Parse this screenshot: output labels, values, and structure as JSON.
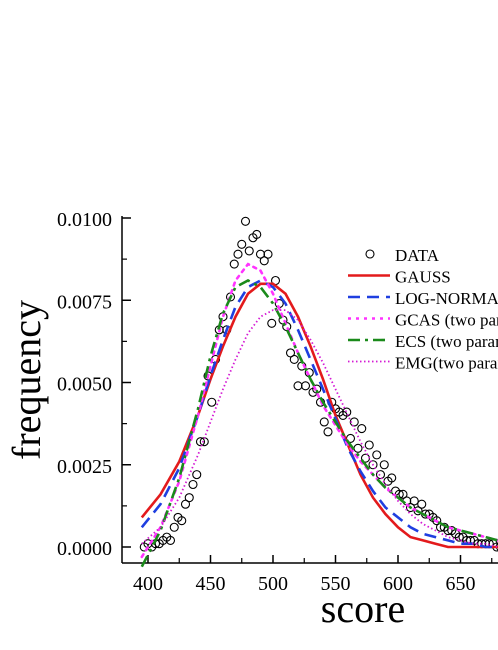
{
  "chart_data": {
    "type": "line",
    "title": "",
    "xlabel": "score",
    "ylabel": "frequency",
    "xlim": [
      380,
      690
    ],
    "ylim": [
      -0.0005,
      0.01
    ],
    "x_ticks": [
      400,
      450,
      500,
      550,
      600,
      650
    ],
    "x_tick_labels": [
      "400",
      "450",
      "500",
      "550",
      "600",
      "650"
    ],
    "y_ticks": [
      0.0,
      0.0025,
      0.005,
      0.0075,
      0.01
    ],
    "y_tick_labels": [
      "0.0000",
      "0.0025",
      "0.0050",
      "0.0075",
      "0.0100"
    ],
    "grid": false,
    "legend_position": "top-right",
    "series": [
      {
        "name": "DATA",
        "style": "markers",
        "marker": "open-circle",
        "color": "#000000",
        "x": [
          397,
          400,
          403,
          406,
          409,
          412,
          415,
          418,
          421,
          424,
          427,
          430,
          433,
          436,
          439,
          442,
          445,
          448,
          451,
          454,
          457,
          460,
          463,
          466,
          469,
          472,
          475,
          478,
          481,
          484,
          487,
          490,
          493,
          496,
          499,
          502,
          505,
          508,
          511,
          514,
          517,
          520,
          523,
          526,
          529,
          532,
          535,
          538,
          541,
          544,
          547,
          550,
          553,
          556,
          559,
          562,
          565,
          568,
          571,
          574,
          577,
          580,
          583,
          586,
          589,
          592,
          595,
          598,
          601,
          604,
          607,
          610,
          613,
          616,
          619,
          622,
          625,
          628,
          631,
          634,
          637,
          640,
          643,
          646,
          649,
          652,
          655,
          658,
          661,
          664,
          667,
          670,
          673,
          676,
          679,
          682,
          685
        ],
        "y": [
          0.0,
          0.0001,
          0.0,
          0.0001,
          0.0001,
          0.0002,
          0.0003,
          0.0002,
          0.0006,
          0.0009,
          0.0008,
          0.0013,
          0.0015,
          0.0019,
          0.0022,
          0.0032,
          0.0032,
          0.0052,
          0.0044,
          0.0057,
          0.0066,
          0.007,
          0.0066,
          0.0076,
          0.0086,
          0.0089,
          0.0092,
          0.0099,
          0.009,
          0.0094,
          0.0095,
          0.0089,
          0.0087,
          0.0089,
          0.0068,
          0.0081,
          0.0074,
          0.0069,
          0.0067,
          0.0059,
          0.0057,
          0.0049,
          0.0055,
          0.0049,
          0.0053,
          0.0047,
          0.0048,
          0.0044,
          0.0038,
          0.0035,
          0.0044,
          0.0042,
          0.0041,
          0.004,
          0.0041,
          0.0033,
          0.0038,
          0.003,
          0.0036,
          0.0027,
          0.0031,
          0.0025,
          0.0028,
          0.0022,
          0.0025,
          0.002,
          0.0021,
          0.0017,
          0.0016,
          0.0016,
          0.0014,
          0.0012,
          0.0014,
          0.0011,
          0.0013,
          0.001,
          0.001,
          0.0009,
          0.0008,
          0.0006,
          0.0006,
          0.0005,
          0.0005,
          0.0004,
          0.0003,
          0.0003,
          0.0002,
          0.0002,
          0.0002,
          0.0001,
          0.0001,
          0.0001,
          0.0001,
          0.0001,
          0.0,
          0.0,
          0.0
        ]
      },
      {
        "name": "GAUSS",
        "style": "solid",
        "color": "#e31a1c",
        "x": [
          395,
          410,
          425,
          440,
          450,
          460,
          470,
          480,
          490,
          500,
          510,
          520,
          530,
          540,
          550,
          560,
          570,
          580,
          590,
          600,
          610,
          620,
          630,
          640,
          650,
          660,
          670,
          680,
          690
        ],
        "y": [
          0.0009,
          0.0016,
          0.0026,
          0.004,
          0.0051,
          0.0061,
          0.007,
          0.0077,
          0.008,
          0.008,
          0.0077,
          0.007,
          0.0061,
          0.0051,
          0.004,
          0.0031,
          0.0022,
          0.0015,
          0.001,
          0.0006,
          0.0003,
          0.0002,
          0.0001,
          0.0,
          0.0,
          0.0,
          0.0,
          0.0,
          0.0
        ]
      },
      {
        "name": "LOG-NORMAL",
        "style": "dashed",
        "color": "#1f3fe0",
        "x": [
          395,
          410,
          425,
          440,
          450,
          460,
          470,
          480,
          490,
          500,
          510,
          520,
          530,
          540,
          550,
          560,
          570,
          580,
          590,
          600,
          610,
          620,
          630,
          640,
          650,
          660,
          670,
          680,
          690
        ],
        "y": [
          0.0006,
          0.0013,
          0.0024,
          0.004,
          0.0052,
          0.0063,
          0.0073,
          0.0079,
          0.0081,
          0.0079,
          0.0074,
          0.0066,
          0.0057,
          0.0048,
          0.0039,
          0.003,
          0.0023,
          0.0017,
          0.0012,
          0.0009,
          0.0006,
          0.0004,
          0.0003,
          0.0002,
          0.0001,
          0.0001,
          0.0,
          0.0,
          0.0
        ]
      },
      {
        "name": "GCAS (two parameters)",
        "style": "dotted",
        "color": "#ff33ff",
        "x": [
          395,
          410,
          425,
          440,
          450,
          460,
          470,
          480,
          490,
          500,
          510,
          520,
          530,
          540,
          550,
          560,
          570,
          580,
          590,
          600,
          610,
          620,
          630,
          640,
          650,
          660,
          670,
          680,
          690
        ],
        "y": [
          -0.0003,
          0.0006,
          0.002,
          0.004,
          0.0055,
          0.007,
          0.0081,
          0.0086,
          0.0084,
          0.0077,
          0.0068,
          0.0059,
          0.0051,
          0.0043,
          0.0037,
          0.0031,
          0.0026,
          0.0022,
          0.0018,
          0.0015,
          0.0012,
          0.001,
          0.0008,
          0.0006,
          0.0005,
          0.0004,
          0.0003,
          0.0002,
          0.0002
        ]
      },
      {
        "name": "ECS (two parameters)",
        "style": "dashdot",
        "color": "#1a8a1a",
        "x": [
          395,
          410,
          425,
          440,
          450,
          460,
          470,
          480,
          490,
          500,
          510,
          520,
          530,
          540,
          550,
          560,
          570,
          580,
          590,
          600,
          610,
          620,
          630,
          640,
          650,
          660,
          670,
          680,
          690
        ],
        "y": [
          -0.0006,
          0.0005,
          0.0021,
          0.0042,
          0.0058,
          0.0071,
          0.0079,
          0.0081,
          0.0079,
          0.0074,
          0.0067,
          0.0059,
          0.0051,
          0.0044,
          0.0038,
          0.0032,
          0.0027,
          0.0022,
          0.0018,
          0.0015,
          0.0012,
          0.001,
          0.0008,
          0.0006,
          0.0005,
          0.0004,
          0.0003,
          0.0002,
          0.0002
        ]
      },
      {
        "name": "EMG(two parameters)",
        "style": "fine-dotted",
        "color": "#d41ad4",
        "x": [
          395,
          410,
          425,
          440,
          450,
          460,
          470,
          480,
          490,
          500,
          510,
          520,
          530,
          540,
          550,
          560,
          570,
          580,
          590,
          600,
          610,
          620,
          630,
          640,
          650,
          660,
          670,
          680,
          690
        ],
        "y": [
          0.0001,
          0.0006,
          0.0015,
          0.0028,
          0.0038,
          0.0048,
          0.0057,
          0.0065,
          0.007,
          0.0072,
          0.0072,
          0.0069,
          0.0063,
          0.0056,
          0.0048,
          0.004,
          0.0032,
          0.0025,
          0.0019,
          0.0014,
          0.001,
          0.0007,
          0.0005,
          0.0003,
          0.0002,
          0.0001,
          0.0001,
          0.0,
          0.0
        ]
      }
    ]
  }
}
